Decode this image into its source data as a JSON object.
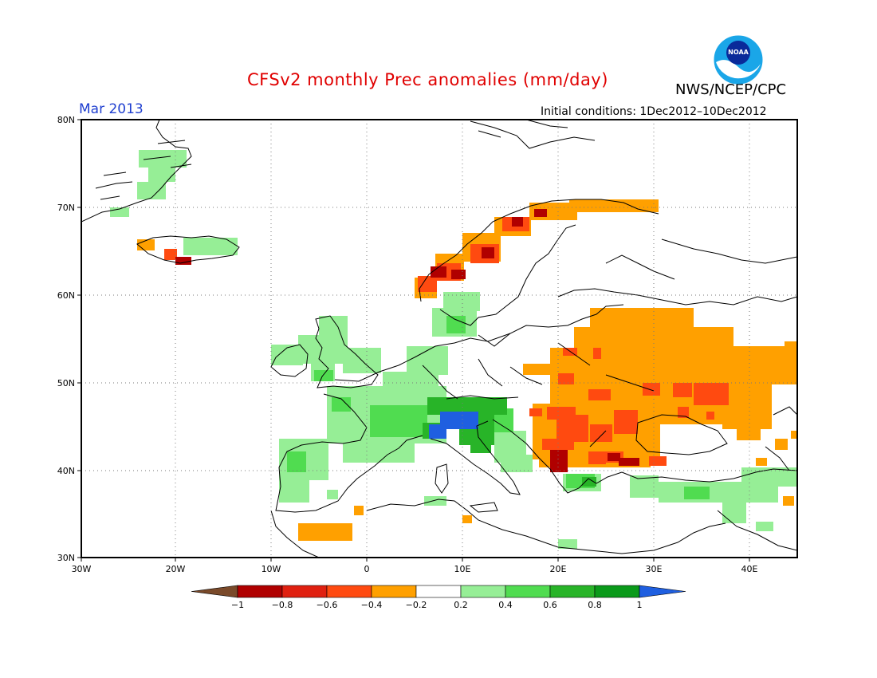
{
  "header": {
    "title": "CFSv2 monthly Prec anomalies (mm/day)",
    "agency": "NWS/NCEP/CPC",
    "logo_text": "NOAA",
    "month": "Mar 2013",
    "initial_conditions": "Initial conditions: 1Dec2012–10Dec2012"
  },
  "axes": {
    "lat_labels": [
      "80N",
      "70N",
      "60N",
      "50N",
      "40N",
      "30N"
    ],
    "lon_labels": [
      "30W",
      "20W",
      "10W",
      "0",
      "10E",
      "20E",
      "30E",
      "40E"
    ],
    "lon_range": [
      -30,
      45
    ],
    "lat_range": [
      30,
      80
    ],
    "grid": "dotted"
  },
  "legend": {
    "tick_labels": [
      "−1",
      "−0.8",
      "−0.6",
      "−0.4",
      "−0.2",
      "0.2",
      "0.4",
      "0.6",
      "0.8",
      "1"
    ],
    "colors": [
      "#7a4a2a",
      "#b00000",
      "#e02010",
      "#ff4a10",
      "#ffa000",
      "#ffffff",
      "#96ee96",
      "#50dc50",
      "#28b428",
      "#0a9a1a",
      "#1f5fe0"
    ]
  }
}
